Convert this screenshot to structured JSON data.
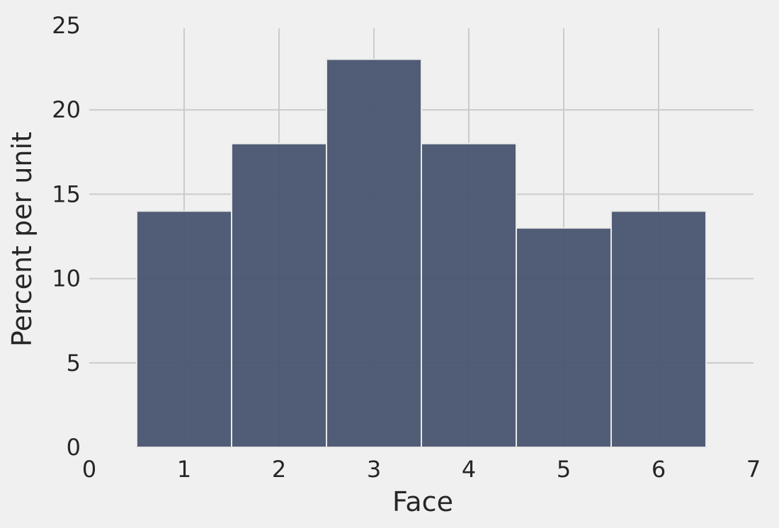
{
  "chart_data": {
    "type": "bar",
    "title": "",
    "xlabel": "Face",
    "ylabel": "Percent per unit",
    "bins": [
      {
        "left": 0.5,
        "right": 1.5,
        "value": 14
      },
      {
        "left": 1.5,
        "right": 2.5,
        "value": 18
      },
      {
        "left": 2.5,
        "right": 3.5,
        "value": 23
      },
      {
        "left": 3.5,
        "right": 4.5,
        "value": 18
      },
      {
        "left": 4.5,
        "right": 5.5,
        "value": 13
      },
      {
        "left": 5.5,
        "right": 6.5,
        "value": 14
      }
    ],
    "xlim": [
      0,
      7
    ],
    "ylim": [
      0,
      25
    ],
    "xticks": [
      "0",
      "1",
      "2",
      "3",
      "4",
      "5",
      "6",
      "7"
    ],
    "yticks": [
      "0",
      "5",
      "10",
      "15",
      "20",
      "25"
    ],
    "grid": true,
    "legend": "none",
    "colors": {
      "bar_fill": "#4a5670",
      "bar_edge": "#e8e8e8",
      "grid": "#cbcbcb",
      "background": "#f0f0f0",
      "text": "#262626"
    }
  }
}
